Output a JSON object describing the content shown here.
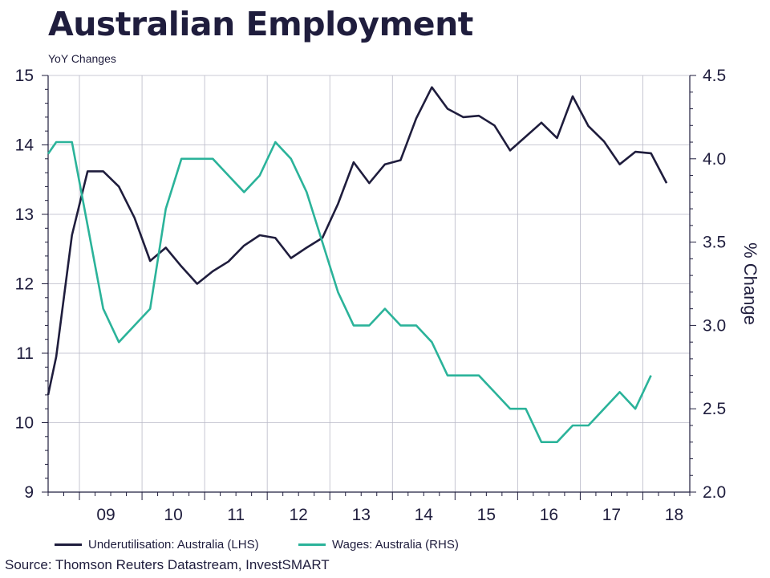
{
  "title": "Australian Employment",
  "subtitle": "YoY Changes",
  "source": "Source: Thomson Reuters Datastream, InvestSMART",
  "colors": {
    "underutilisation": "#1f1d3d",
    "wages": "#2bb39a",
    "grid": "#b9b9c7",
    "axis": "#1f1d3d"
  },
  "chart_data": {
    "type": "line",
    "title": "Australian Employment",
    "subtitle": "YoY Changes",
    "ylabel_left": "",
    "ylabel_right": "% Change",
    "ylim_left": [
      9,
      15
    ],
    "ylim_right": [
      2.0,
      4.5
    ],
    "yticks_left": [
      "15",
      "14",
      "13",
      "12",
      "11",
      "10",
      "9"
    ],
    "yticks_right": [
      "4.5",
      "4.0",
      "3.5",
      "3.0",
      "2.5",
      "2.0"
    ],
    "xlim": [
      2008.5,
      2018.75
    ],
    "xticks": [
      {
        "label": "09",
        "x": 2009
      },
      {
        "label": "10",
        "x": 2010
      },
      {
        "label": "11",
        "x": 2011
      },
      {
        "label": "12",
        "x": 2012
      },
      {
        "label": "13",
        "x": 2013
      },
      {
        "label": "14",
        "x": 2014
      },
      {
        "label": "15",
        "x": 2015
      },
      {
        "label": "16",
        "x": 2016
      },
      {
        "label": "17",
        "x": 2017
      },
      {
        "label": "18",
        "x": 2018
      }
    ],
    "grid": true,
    "legend_position": "bottom",
    "series": [
      {
        "name": "Underutilisation: Australia (LHS)",
        "axis": "left",
        "points": [
          [
            2008.5,
            10.4
          ],
          [
            2008.63,
            10.95
          ],
          [
            2008.88,
            12.7
          ],
          [
            2009.13,
            13.62
          ],
          [
            2009.38,
            13.62
          ],
          [
            2009.63,
            13.4
          ],
          [
            2009.88,
            12.95
          ],
          [
            2010.13,
            12.33
          ],
          [
            2010.38,
            12.52
          ],
          [
            2010.63,
            12.25
          ],
          [
            2010.88,
            12.0
          ],
          [
            2011.13,
            12.18
          ],
          [
            2011.38,
            12.32
          ],
          [
            2011.63,
            12.55
          ],
          [
            2011.88,
            12.7
          ],
          [
            2012.13,
            12.66
          ],
          [
            2012.38,
            12.37
          ],
          [
            2012.63,
            12.52
          ],
          [
            2012.88,
            12.66
          ],
          [
            2013.13,
            13.15
          ],
          [
            2013.38,
            13.75
          ],
          [
            2013.63,
            13.45
          ],
          [
            2013.88,
            13.72
          ],
          [
            2014.13,
            13.78
          ],
          [
            2014.38,
            14.38
          ],
          [
            2014.63,
            14.83
          ],
          [
            2014.88,
            14.52
          ],
          [
            2015.13,
            14.4
          ],
          [
            2015.38,
            14.42
          ],
          [
            2015.63,
            14.28
          ],
          [
            2015.88,
            13.92
          ],
          [
            2016.13,
            14.12
          ],
          [
            2016.38,
            14.32
          ],
          [
            2016.63,
            14.1
          ],
          [
            2016.88,
            14.7
          ],
          [
            2017.13,
            14.27
          ],
          [
            2017.38,
            14.05
          ],
          [
            2017.63,
            13.72
          ],
          [
            2017.88,
            13.9
          ],
          [
            2018.13,
            13.88
          ],
          [
            2018.38,
            13.45
          ]
        ]
      },
      {
        "name": "Wages: Australia (RHS)",
        "axis": "right",
        "points": [
          [
            2008.5,
            4.03
          ],
          [
            2008.63,
            4.1
          ],
          [
            2008.88,
            4.1
          ],
          [
            2009.13,
            3.6
          ],
          [
            2009.38,
            3.1
          ],
          [
            2009.63,
            2.9
          ],
          [
            2009.88,
            3.0
          ],
          [
            2010.13,
            3.1
          ],
          [
            2010.38,
            3.7
          ],
          [
            2010.63,
            4.0
          ],
          [
            2010.88,
            4.0
          ],
          [
            2011.13,
            4.0
          ],
          [
            2011.38,
            3.9
          ],
          [
            2011.63,
            3.8
          ],
          [
            2011.88,
            3.9
          ],
          [
            2012.13,
            4.1
          ],
          [
            2012.38,
            4.0
          ],
          [
            2012.63,
            3.8
          ],
          [
            2012.88,
            3.5
          ],
          [
            2013.13,
            3.2
          ],
          [
            2013.38,
            3.0
          ],
          [
            2013.63,
            3.0
          ],
          [
            2013.88,
            3.1
          ],
          [
            2014.13,
            3.0
          ],
          [
            2014.38,
            3.0
          ],
          [
            2014.63,
            2.9
          ],
          [
            2014.88,
            2.7
          ],
          [
            2015.13,
            2.7
          ],
          [
            2015.38,
            2.7
          ],
          [
            2015.63,
            2.6
          ],
          [
            2015.88,
            2.5
          ],
          [
            2016.13,
            2.5
          ],
          [
            2016.38,
            2.3
          ],
          [
            2016.63,
            2.3
          ],
          [
            2016.88,
            2.4
          ],
          [
            2017.13,
            2.4
          ],
          [
            2017.38,
            2.5
          ],
          [
            2017.63,
            2.6
          ],
          [
            2017.88,
            2.5
          ],
          [
            2018.13,
            2.7
          ]
        ]
      }
    ]
  }
}
